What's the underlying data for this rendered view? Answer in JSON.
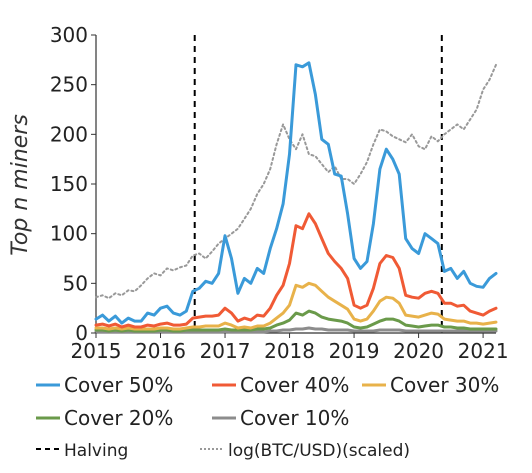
{
  "chart_data": {
    "type": "line",
    "title": "",
    "xlabel": "",
    "ylabel": "Top n miners",
    "xlim": [
      2015.0,
      2021.2
    ],
    "ylim": [
      0,
      300
    ],
    "x_ticks": [
      2015,
      2016,
      2017,
      2018,
      2019,
      2020,
      2021
    ],
    "x_tick_labels": [
      "2015",
      "2016",
      "2017",
      "2018",
      "2019",
      "2020",
      "2021"
    ],
    "y_ticks": [
      0,
      50,
      100,
      150,
      200,
      250,
      300
    ],
    "y_tick_labels": [
      "0",
      "50",
      "100",
      "150",
      "200",
      "250",
      "300"
    ],
    "grid": false,
    "legend_placement": "bottom",
    "x": [
      2015.0,
      2015.1,
      2015.2,
      2015.3,
      2015.4,
      2015.5,
      2015.6,
      2015.7,
      2015.8,
      2015.9,
      2016.0,
      2016.1,
      2016.2,
      2016.3,
      2016.4,
      2016.5,
      2016.6,
      2016.7,
      2016.8,
      2016.9,
      2017.0,
      2017.1,
      2017.2,
      2017.3,
      2017.4,
      2017.5,
      2017.6,
      2017.7,
      2017.8,
      2017.9,
      2018.0,
      2018.1,
      2018.2,
      2018.3,
      2018.4,
      2018.5,
      2018.6,
      2018.7,
      2018.8,
      2018.9,
      2019.0,
      2019.1,
      2019.2,
      2019.3,
      2019.4,
      2019.5,
      2019.6,
      2019.7,
      2019.8,
      2019.9,
      2020.0,
      2020.1,
      2020.2,
      2020.3,
      2020.4,
      2020.5,
      2020.6,
      2020.7,
      2020.8,
      2020.9,
      2021.0,
      2021.1,
      2021.2
    ],
    "series": [
      {
        "name": "Cover 50%",
        "color": "#3a9ad9",
        "style": "solid",
        "values": [
          14,
          18,
          12,
          17,
          10,
          15,
          12,
          12,
          20,
          18,
          25,
          27,
          20,
          18,
          22,
          42,
          45,
          52,
          50,
          60,
          98,
          75,
          40,
          55,
          50,
          65,
          60,
          85,
          105,
          130,
          180,
          270,
          268,
          272,
          240,
          195,
          190,
          160,
          158,
          120,
          75,
          65,
          72,
          110,
          165,
          185,
          175,
          160,
          95,
          85,
          80,
          100,
          95,
          90,
          62,
          65,
          55,
          62,
          50,
          47,
          46,
          55,
          60
        ]
      },
      {
        "name": "Cover 40%",
        "color": "#f05a35",
        "style": "solid",
        "values": [
          8,
          9,
          7,
          9,
          6,
          8,
          6,
          6,
          8,
          7,
          9,
          10,
          8,
          8,
          9,
          15,
          16,
          17,
          17,
          18,
          25,
          20,
          12,
          15,
          13,
          18,
          17,
          25,
          38,
          48,
          70,
          108,
          105,
          120,
          110,
          95,
          80,
          72,
          65,
          55,
          28,
          25,
          28,
          45,
          70,
          78,
          76,
          65,
          38,
          36,
          35,
          40,
          42,
          40,
          30,
          30,
          27,
          28,
          22,
          20,
          18,
          22,
          25
        ]
      },
      {
        "name": "Cover 30%",
        "color": "#e8b24a",
        "style": "solid",
        "values": [
          5,
          5,
          4,
          5,
          4,
          5,
          4,
          4,
          4,
          4,
          5,
          5,
          4,
          4,
          5,
          6,
          6,
          7,
          7,
          7,
          10,
          8,
          5,
          6,
          5,
          7,
          7,
          10,
          15,
          20,
          28,
          48,
          46,
          50,
          48,
          42,
          36,
          32,
          28,
          24,
          14,
          12,
          14,
          22,
          32,
          36,
          35,
          30,
          18,
          17,
          16,
          18,
          20,
          19,
          14,
          13,
          12,
          12,
          10,
          10,
          9,
          10,
          11
        ]
      },
      {
        "name": "Cover 20%",
        "color": "#6a9a4a",
        "style": "solid",
        "values": [
          3,
          3,
          2,
          3,
          2,
          3,
          2,
          2,
          2,
          2,
          3,
          3,
          2,
          2,
          3,
          3,
          3,
          3,
          3,
          3,
          4,
          3,
          3,
          3,
          3,
          4,
          4,
          5,
          8,
          10,
          13,
          20,
          18,
          22,
          20,
          16,
          14,
          13,
          12,
          10,
          6,
          5,
          6,
          9,
          12,
          14,
          14,
          12,
          8,
          7,
          6,
          7,
          8,
          8,
          6,
          6,
          5,
          5,
          4,
          4,
          4,
          4,
          4
        ]
      },
      {
        "name": "Cover 10%",
        "color": "#8c8c8c",
        "style": "solid",
        "values": [
          1,
          1,
          1,
          1,
          1,
          1,
          1,
          1,
          1,
          1,
          1,
          1,
          1,
          1,
          1,
          1,
          1,
          1,
          1,
          1,
          1,
          1,
          1,
          1,
          1,
          1,
          1,
          2,
          2,
          3,
          3,
          4,
          4,
          5,
          4,
          4,
          3,
          3,
          3,
          3,
          2,
          2,
          2,
          2,
          3,
          3,
          3,
          3,
          2,
          2,
          2,
          2,
          2,
          2,
          2,
          2,
          2,
          2,
          2,
          2,
          2,
          2,
          2
        ]
      },
      {
        "name": "log(BTC/USD)(scaled)",
        "color": "#999999",
        "style": "dotted",
        "values": [
          36,
          38,
          35,
          40,
          38,
          43,
          42,
          48,
          55,
          60,
          58,
          65,
          63,
          66,
          68,
          78,
          80,
          75,
          82,
          90,
          95,
          100,
          105,
          115,
          125,
          140,
          150,
          165,
          190,
          210,
          195,
          185,
          200,
          180,
          178,
          170,
          162,
          168,
          155,
          155,
          150,
          160,
          172,
          190,
          205,
          203,
          198,
          195,
          192,
          200,
          188,
          185,
          198,
          193,
          200,
          205,
          210,
          205,
          215,
          225,
          245,
          255,
          270
        ]
      }
    ],
    "reference_lines": [
      {
        "name": "Halving",
        "x": 2016.53,
        "style": "dashed",
        "color": "#000000"
      },
      {
        "name": "Halving",
        "x": 2020.36,
        "style": "dashed",
        "color": "#000000"
      }
    ],
    "legend": [
      {
        "label": "Cover 50%",
        "color": "#3a9ad9",
        "style": "solid"
      },
      {
        "label": "Cover 40%",
        "color": "#f05a35",
        "style": "solid"
      },
      {
        "label": "Cover 30%",
        "color": "#e8b24a",
        "style": "solid"
      },
      {
        "label": "Cover 20%",
        "color": "#6a9a4a",
        "style": "solid"
      },
      {
        "label": "Cover 10%",
        "color": "#8c8c8c",
        "style": "solid"
      },
      {
        "label": "Halving",
        "color": "#000000",
        "style": "dashed"
      },
      {
        "label": "log(BTC/USD)(scaled)",
        "color": "#999999",
        "style": "dotted"
      }
    ]
  }
}
